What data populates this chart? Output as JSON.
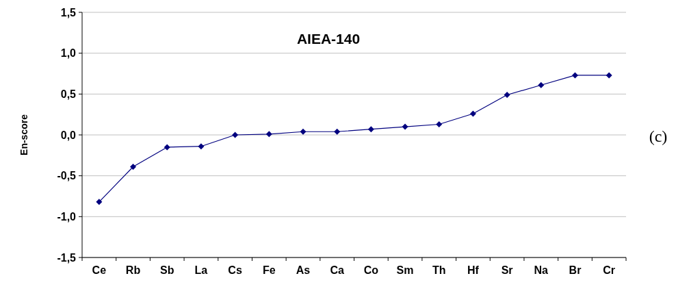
{
  "chart_data": {
    "type": "line",
    "title": "AIEA-140",
    "ylabel": "En-score",
    "annotations": [
      "(c)"
    ],
    "categories": [
      "Ce",
      "Rb",
      "Sb",
      "La",
      "Cs",
      "Fe",
      "As",
      "Ca",
      "Co",
      "Sm",
      "Th",
      "Hf",
      "Sr",
      "Na",
      "Br",
      "Cr"
    ],
    "series": [
      {
        "color": "#00007f",
        "values": [
          -0.82,
          -0.39,
          -0.15,
          -0.14,
          0.0,
          0.01,
          0.04,
          0.04,
          0.07,
          0.1,
          0.13,
          0.26,
          0.49,
          0.61,
          0.73,
          0.73
        ]
      }
    ],
    "ylim": [
      -1.5,
      1.5
    ],
    "yticks": [
      {
        "value": -1.5,
        "label": "-1,5"
      },
      {
        "value": -1,
        "label": "-1,0"
      },
      {
        "value": -0.5,
        "label": "-0,5"
      },
      {
        "value": 0,
        "label": "0,0"
      },
      {
        "value": 0.5,
        "label": "0,5"
      },
      {
        "value": 1,
        "label": "1,0"
      },
      {
        "value": 1.5,
        "label": "1,5"
      }
    ],
    "grid": "y",
    "marker": "diamond",
    "line_style": "solid"
  }
}
